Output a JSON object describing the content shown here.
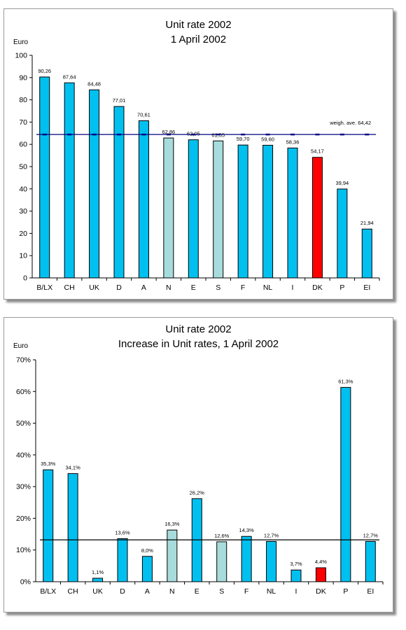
{
  "colors": {
    "normal": "#00c0f0",
    "nordic": "#a8dcdc",
    "highlight": "#ff0000",
    "axis": "#000000",
    "refline": "#000080"
  },
  "chart_data": [
    {
      "type": "bar",
      "title": "Unit rate 2002",
      "subtitle": "1 April 2002",
      "ylabel": "Euro",
      "ylim": [
        0,
        100
      ],
      "yticks": [
        "0",
        "10",
        "20",
        "30",
        "40",
        "50",
        "60",
        "70",
        "80",
        "90",
        "100"
      ],
      "categories": [
        "B/LX",
        "CH",
        "UK",
        "D",
        "A",
        "N",
        "E",
        "S",
        "F",
        "NL",
        "I",
        "DK",
        "P",
        "EI"
      ],
      "values": [
        90.26,
        87.64,
        84.48,
        77.01,
        70.61,
        62.86,
        62.05,
        61.55,
        59.7,
        59.6,
        58.36,
        54.17,
        39.94,
        21.94
      ],
      "value_labels": [
        "90,26",
        "87,64",
        "84,48",
        "77,01",
        "70,61",
        "62,86",
        "62,05",
        "61,55",
        "59,70",
        "59,60",
        "58,36",
        "54,17",
        "39,94",
        "21,94"
      ],
      "bar_colors": [
        "normal",
        "normal",
        "normal",
        "normal",
        "normal",
        "nordic",
        "normal",
        "nordic",
        "normal",
        "normal",
        "normal",
        "highlight",
        "normal",
        "normal"
      ],
      "reference_line": {
        "value": 64.42,
        "label": "weigh. ave. 64,42"
      },
      "grid": false
    },
    {
      "type": "bar",
      "title": "Unit rate 2002",
      "subtitle": "Increase in Unit rates, 1 April 2002",
      "ylabel": "Euro",
      "ylim": [
        0,
        70
      ],
      "yticks": [
        "0%",
        "10%",
        "20%",
        "30%",
        "40%",
        "50%",
        "60%",
        "70%"
      ],
      "categories": [
        "B/LX",
        "CH",
        "UK",
        "D",
        "A",
        "N",
        "E",
        "S",
        "F",
        "NL",
        "I",
        "DK",
        "P",
        "EI"
      ],
      "values": [
        35.3,
        34.1,
        1.1,
        13.6,
        8.0,
        16.3,
        26.2,
        12.6,
        14.3,
        12.7,
        3.7,
        4.4,
        61.3,
        12.7
      ],
      "value_labels": [
        "35,3%",
        "34,1%",
        "1,1%",
        "13,6%",
        "8,0%",
        "16,3%",
        "26,2%",
        "12,6%",
        "14,3%",
        "12,7%",
        "3,7%",
        "4,4%",
        "61,3%",
        "12,7%"
      ],
      "bar_colors": [
        "normal",
        "normal",
        "normal",
        "normal",
        "normal",
        "nordic",
        "normal",
        "nordic",
        "normal",
        "normal",
        "normal",
        "highlight",
        "normal",
        "normal"
      ],
      "reference_line": {
        "value": 13.2,
        "label": ""
      },
      "grid": false
    }
  ]
}
